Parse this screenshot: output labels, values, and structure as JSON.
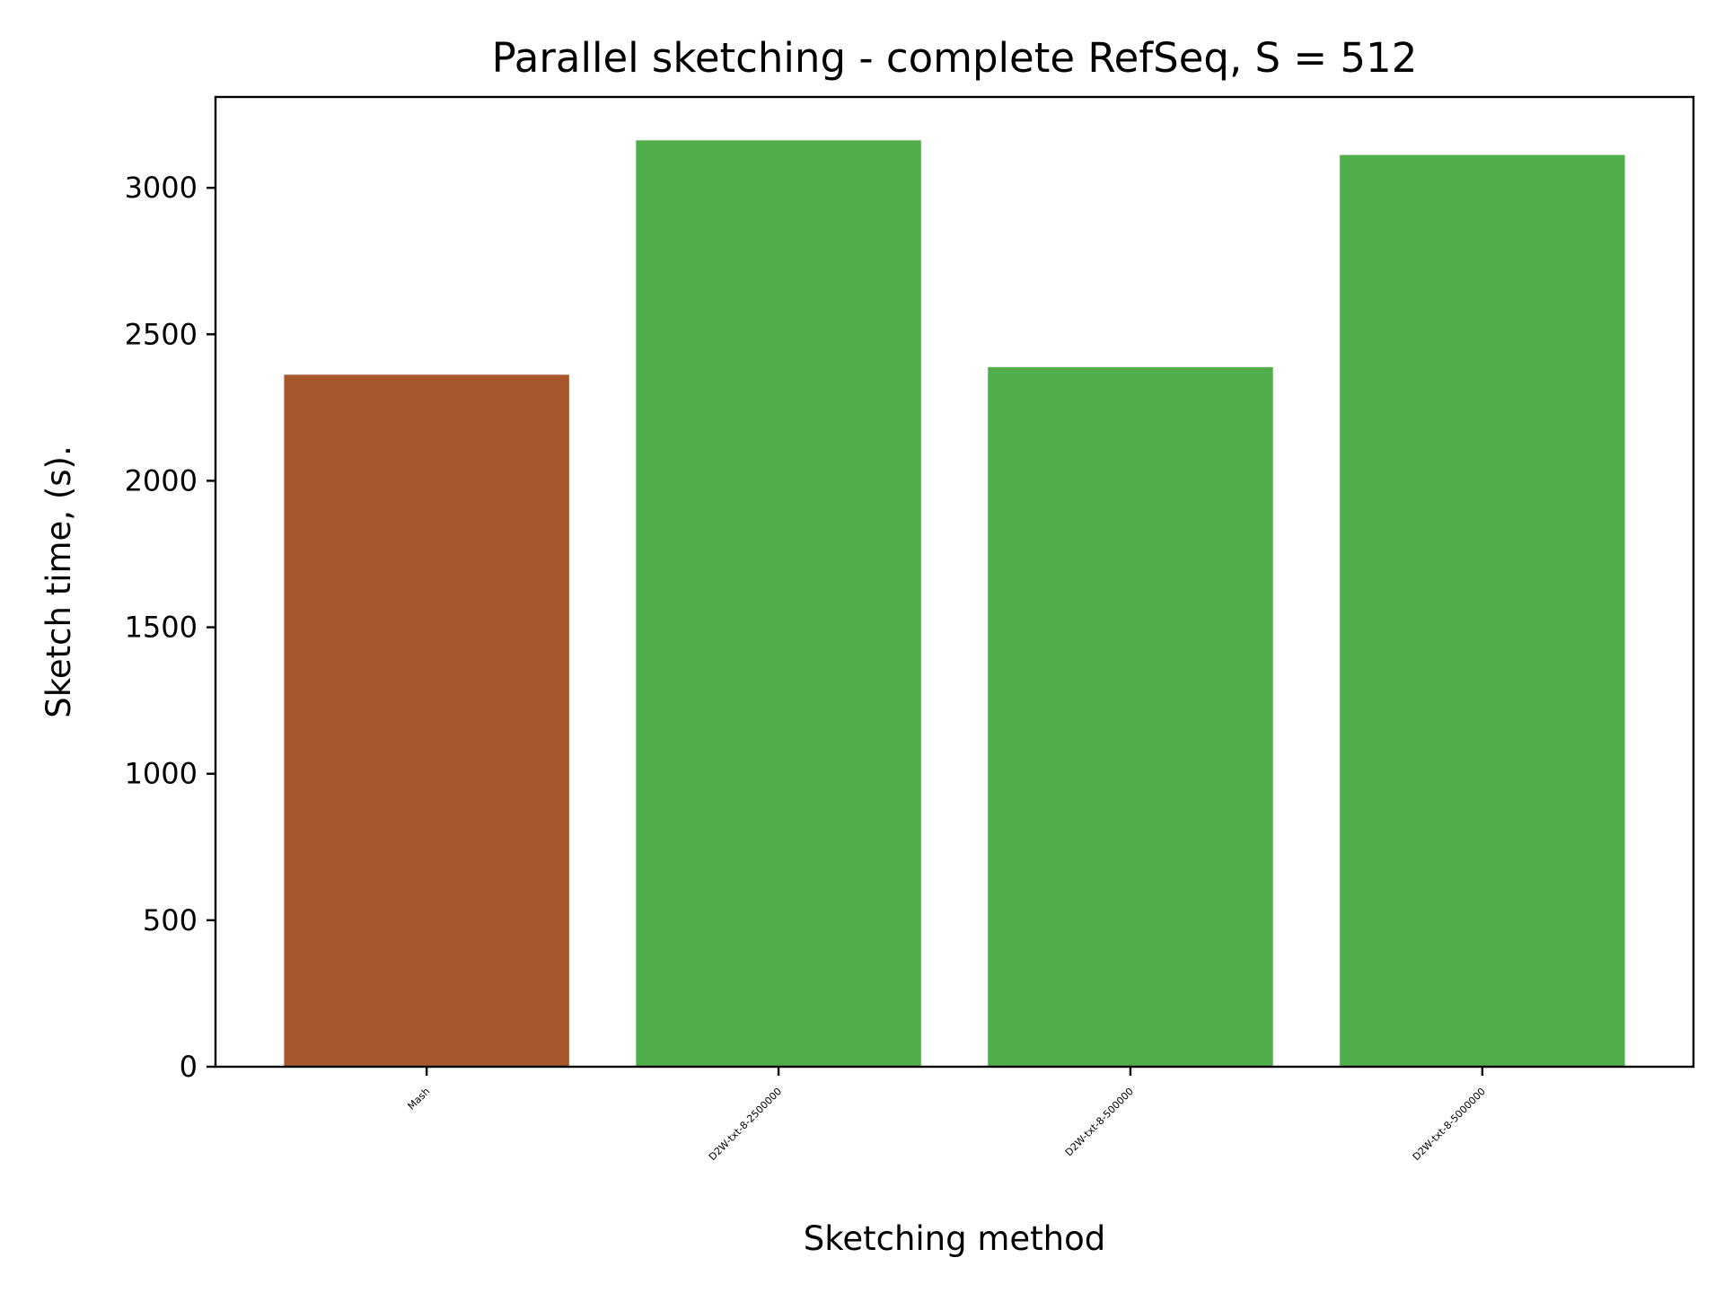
{
  "chart_data": {
    "type": "bar",
    "title": "Parallel sketching - complete RefSeq, S = 512",
    "xlabel": "Sketching method",
    "ylabel": "Sketch time, (s).",
    "categories": [
      "Mash",
      "D2W-txt-8-2500000",
      "D2W-txt-8-500000",
      "D2W-txt-8-5000000"
    ],
    "values": [
      2362,
      3162,
      2388,
      3112
    ],
    "colors": [
      "#a6572b",
      "#50ae4a",
      "#50ae4a",
      "#50ae4a"
    ],
    "ylim": [
      0,
      3310
    ],
    "yticks": [
      0,
      500,
      1000,
      1500,
      2000,
      2500,
      3000
    ],
    "grid": false,
    "legend": "none"
  }
}
